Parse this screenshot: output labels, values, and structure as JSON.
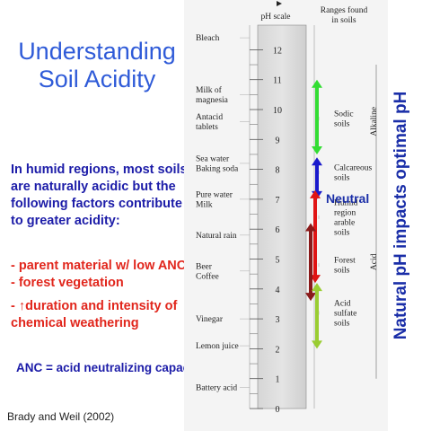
{
  "slide": {
    "title_line1": "Understanding",
    "title_line2": "Soil Acidity",
    "intro": "In humid regions, most soils are naturally acidic but the following factors contribute to greater acidity:",
    "factors": [
      "- parent material w/ low ANC",
      "- forest vegetation",
      "- ↑duration and intensity of chemical weathering"
    ],
    "anc_note": "ANC = acid neutralizing capacity",
    "citation": "Brady and Weil (2002)",
    "side_title": "Natural pH impacts optimal pH"
  },
  "diagram": {
    "ph_scale_header": "pH scale",
    "ranges_header_line1": "Ranges found",
    "ranges_header_line2": "in soils",
    "ticks": [
      "12",
      "11",
      "10",
      "9",
      "8",
      "7",
      "6",
      "5",
      "4",
      "3",
      "2",
      "1",
      "0"
    ],
    "substances": [
      {
        "lines": [
          "Bleach"
        ],
        "ph": 12.4
      },
      {
        "lines": [
          "Milk of",
          "magnesia"
        ],
        "ph": 10.5
      },
      {
        "lines": [
          "Antacid",
          "tablets"
        ],
        "ph": 9.6
      },
      {
        "lines": [
          "Sea water",
          "Baking soda"
        ],
        "ph": 8.2
      },
      {
        "lines": [
          "Pure water",
          "Milk"
        ],
        "ph": 7.0
      },
      {
        "lines": [
          "Natural rain"
        ],
        "ph": 5.8
      },
      {
        "lines": [
          "Beer",
          "Coffee"
        ],
        "ph": 4.6
      },
      {
        "lines": [
          "Vinegar"
        ],
        "ph": 3.0
      },
      {
        "lines": [
          "Lemon juice"
        ],
        "ph": 2.1
      },
      {
        "lines": [
          "Battery acid"
        ],
        "ph": 0.7
      }
    ],
    "soil_ranges": [
      {
        "lines": [
          "Sodic",
          "soils"
        ],
        "ph": 9.7
      },
      {
        "lines": [
          "Calcareous",
          "soils"
        ],
        "ph": 7.9
      },
      {
        "lines": [
          "Humid",
          "region",
          "arable",
          "soils"
        ],
        "ph": 6.4
      },
      {
        "lines": [
          "Forest",
          "soils"
        ],
        "ph": 4.8
      },
      {
        "lines": [
          "Acid",
          "sulfate",
          "soils"
        ],
        "ph": 3.2
      }
    ],
    "neutral_label": "Neutral",
    "alkaline_label": "Alkaline",
    "acid_label": "Acid",
    "arrows": [
      {
        "name": "sodic",
        "color": "#33dd33",
        "from": 8.5,
        "to": 11.0
      },
      {
        "name": "calcareous",
        "color": "#1a1acc",
        "from": 7.0,
        "to": 8.4
      },
      {
        "name": "humid",
        "color": "#e01414",
        "from": 4.2,
        "to": 7.3
      },
      {
        "name": "forest",
        "color": "#8a1a1a",
        "from": 3.6,
        "to": 6.2
      },
      {
        "name": "acid-sulfate",
        "color": "#9acd32",
        "from": 2.0,
        "to": 4.2
      }
    ]
  },
  "colors": {
    "title": "#2f5bd8",
    "intro": "#1c1ca8",
    "factors": "#e1261c",
    "side_title": "#1a2ea8"
  }
}
